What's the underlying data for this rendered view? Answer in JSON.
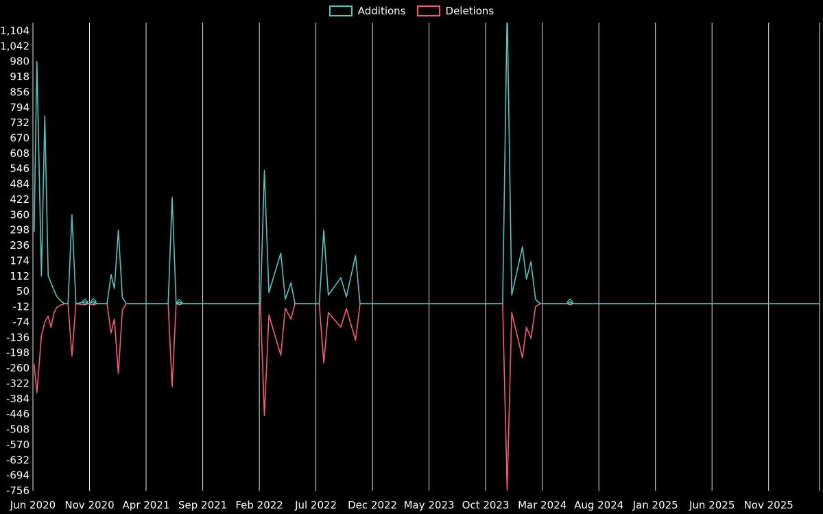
{
  "page": {
    "background": "#000000"
  },
  "chart_data": {
    "type": "line",
    "title": "",
    "legend_position": "top-center",
    "colors": {
      "background": "#000000",
      "text": "#ffffff",
      "grid": "#e6e6e6",
      "additions": "#4cc8bf",
      "deletions": "#fa5a7a"
    },
    "x_axis": {
      "unit": "months since Jun 2020",
      "range": [
        0,
        69.5
      ],
      "tick_values": [
        0,
        5,
        10,
        15,
        20,
        25,
        30,
        35,
        40,
        45,
        50,
        55,
        60,
        65
      ],
      "tick_labels": [
        "Jun 2020",
        "Nov 2020",
        "Apr 2021",
        "Sep 2021",
        "Feb 2022",
        "Jul 2022",
        "Dec 2022",
        "May 2023",
        "Oct 2023",
        "Mar 2024",
        "Aug 2024",
        "Jan 2025",
        "Jun 2025",
        "Nov 2025"
      ]
    },
    "y_axis": {
      "range": [
        -756,
        1137
      ],
      "tick_values": [
        1104,
        1042,
        980,
        918,
        856,
        794,
        732,
        670,
        608,
        546,
        484,
        422,
        360,
        298,
        236,
        174,
        112,
        50,
        -12,
        -74,
        -136,
        -198,
        -260,
        -322,
        -384,
        -446,
        -508,
        -570,
        -632,
        -694,
        -756
      ],
      "tick_labels": [
        "1,104",
        "1,042",
        "980",
        "918",
        "856",
        "794",
        "732",
        "670",
        "608",
        "546",
        "484",
        "422",
        "360",
        "298",
        "236",
        "174",
        "112",
        "50",
        "-12",
        "-74",
        "-136",
        "-198",
        "-260",
        "-322",
        "-384",
        "-446",
        "-508",
        "-570",
        "-632",
        "-694",
        "-756"
      ]
    },
    "grid": {
      "vertical": true,
      "horizontal": false
    },
    "x": [
      0.1,
      0.35,
      0.75,
      1.05,
      1.35,
      1.6,
      1.85,
      2.1,
      2.45,
      2.8,
      3.1,
      3.45,
      3.8,
      4.6,
      4.9,
      5.35,
      5.65,
      6.55,
      6.9,
      7.2,
      7.55,
      7.9,
      8.25,
      11.95,
      12.3,
      12.65,
      12.95,
      13.3,
      20.1,
      20.45,
      20.85,
      21.9,
      22.3,
      22.8,
      23.15,
      25.3,
      25.7,
      26.1,
      27.2,
      27.7,
      28.5,
      28.9,
      41.5,
      41.9,
      42.3,
      43.25,
      43.6,
      44.0,
      44.4,
      44.8,
      47.2,
      47.45,
      47.75,
      69.5
    ],
    "series": [
      {
        "name": "Additions",
        "color": "#4cc8bf",
        "values": [
          290,
          980,
          112,
          760,
          112,
          85,
          55,
          30,
          12,
          0,
          0,
          360,
          0,
          8,
          0,
          10,
          0,
          0,
          118,
          62,
          298,
          25,
          0,
          0,
          430,
          0,
          6,
          0,
          0,
          540,
          45,
          205,
          18,
          85,
          0,
          0,
          298,
          35,
          105,
          28,
          195,
          0,
          0,
          1200,
          35,
          230,
          100,
          170,
          18,
          0,
          0,
          8,
          0,
          0
        ]
      },
      {
        "name": "Deletions",
        "color": "#fa5a7a",
        "values": [
          -245,
          -360,
          -130,
          -74,
          -50,
          -95,
          -40,
          -15,
          -5,
          0,
          0,
          -212,
          0,
          -4,
          0,
          -5,
          0,
          0,
          -118,
          -62,
          -282,
          -25,
          0,
          0,
          -335,
          0,
          -3,
          0,
          0,
          -452,
          -45,
          -208,
          -18,
          -62,
          0,
          0,
          -240,
          -35,
          -95,
          -20,
          -148,
          0,
          0,
          -756,
          -35,
          -218,
          -95,
          -140,
          -12,
          0,
          0,
          -4,
          0,
          0
        ]
      }
    ],
    "markers": [
      {
        "x": 4.6,
        "v": 8
      },
      {
        "x": 5.35,
        "v": 10
      },
      {
        "x": 12.95,
        "v": 6
      },
      {
        "x": 47.45,
        "v": 8
      }
    ]
  }
}
